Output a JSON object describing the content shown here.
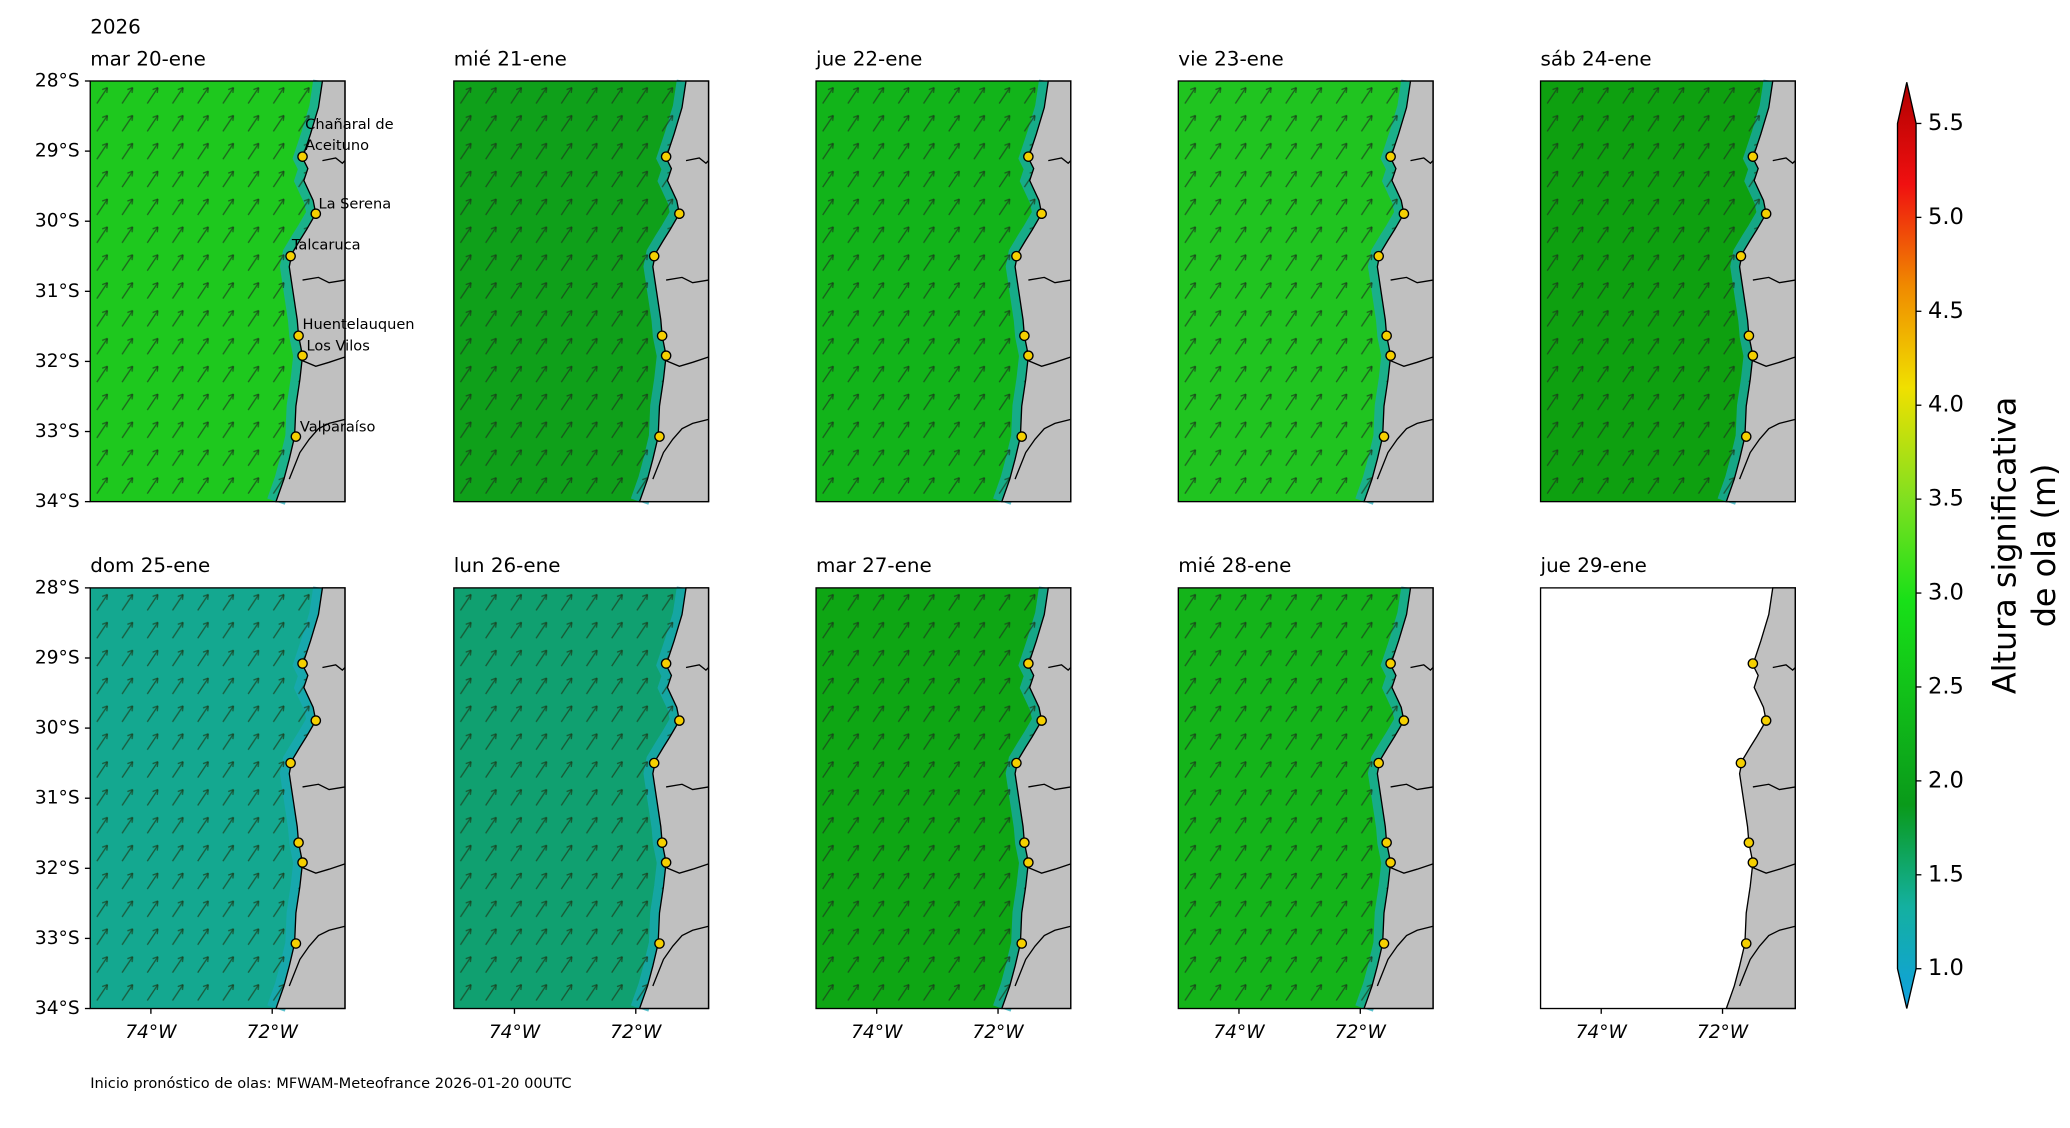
{
  "year": "2026",
  "lonlim": [
    -75,
    -70.8
  ],
  "latlim": [
    -28,
    -34
  ],
  "lonticks": [
    {
      "value": -74,
      "label": "74°W"
    },
    {
      "value": -72,
      "label": "72°W"
    }
  ],
  "latticks": [
    {
      "value": -28,
      "label": "28°S"
    },
    {
      "value": -29,
      "label": "29°S"
    },
    {
      "value": -30,
      "label": "30°S"
    },
    {
      "value": -31,
      "label": "31°S"
    },
    {
      "value": -32,
      "label": "32°S"
    },
    {
      "value": -33,
      "label": "33°S"
    },
    {
      "value": -34,
      "label": "34°S"
    }
  ],
  "panels": [
    {
      "title": "mar 20-ene",
      "color": "#1ec81e",
      "arrows": true
    },
    {
      "title": "mié 21-ene",
      "color": "#0fa01a",
      "arrows": true
    },
    {
      "title": "jue 22-ene",
      "color": "#12b41a",
      "arrows": true
    },
    {
      "title": "vie 23-ene",
      "color": "#20c420",
      "arrows": true
    },
    {
      "title": "sáb 24-ene",
      "color": "#0ea010",
      "arrows": true
    },
    {
      "title": "dom 25-ene",
      "color": "#14a890",
      "arrows": true
    },
    {
      "title": "lun 26-ene",
      "color": "#10a070",
      "arrows": true
    },
    {
      "title": "mar 27-ene",
      "color": "#0ea614",
      "arrows": true
    },
    {
      "title": "mié 28-ene",
      "color": "#14b41a",
      "arrows": true
    },
    {
      "title": "jue 29-ene",
      "color": "#ffffff",
      "arrows": false
    }
  ],
  "stations": [
    "Chañaral de Aceituno",
    "La Serena",
    "Talcaruca",
    "Huentelauquen",
    "Los Vilos",
    "Valparaíso"
  ],
  "colorbar": {
    "label": [
      "Altura significativa",
      "de ola (m)"
    ],
    "lim": [
      1.0,
      5.5
    ],
    "ticks": [
      {
        "value": 1,
        "label": "1.0"
      },
      1.5,
      {
        "value": 2,
        "label": "2.0"
      },
      2.5,
      {
        "value": 3,
        "label": "3.0"
      },
      3.5,
      {
        "value": 4,
        "label": "4.0"
      },
      4.5,
      {
        "value": 5,
        "label": "5.0"
      },
      5.5
    ]
  },
  "footer": "Inicio pronóstico de olas: MFWAM-Meteofrance 2026-01-20 00UTC"
}
